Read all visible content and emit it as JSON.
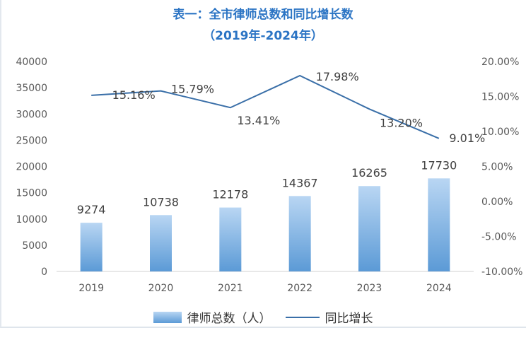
{
  "chart_data": {
    "type": "bar",
    "title": "表一：全市律师总数和同比增长数",
    "subtitle": "（2019年-2024年）",
    "categories": [
      "2019",
      "2020",
      "2021",
      "2022",
      "2023",
      "2024"
    ],
    "series": [
      {
        "name": "律师总数（人）",
        "type": "bar",
        "axis": "left",
        "values": [
          9274,
          10738,
          12178,
          14367,
          16265,
          17730
        ],
        "labels": [
          "9274",
          "10738",
          "12178",
          "14367",
          "16265",
          "17730"
        ]
      },
      {
        "name": "同比增长",
        "type": "line",
        "axis": "right",
        "values": [
          15.16,
          15.79,
          13.41,
          17.98,
          13.2,
          9.01
        ],
        "labels": [
          "15.16%",
          "15.79%",
          "13.41%",
          "17.98%",
          "13.20%",
          "9.01%"
        ]
      }
    ],
    "y_left": {
      "ylim": [
        0,
        40000
      ],
      "ticks": [
        "0",
        "5000",
        "10000",
        "15000",
        "20000",
        "25000",
        "30000",
        "35000",
        "40000"
      ]
    },
    "y_right": {
      "ylim": [
        -10,
        20
      ],
      "ticks": [
        "-10.00%",
        "-5.00%",
        "0.00%",
        "5.00%",
        "10.00%",
        "15.00%",
        "20.00%"
      ]
    },
    "grid": false,
    "legend": "bottom",
    "colors": {
      "bar_top": "#b9d6f3",
      "bar_bottom": "#5b9ad6",
      "line": "#3a6fa8",
      "title": "#2b74c4"
    }
  }
}
